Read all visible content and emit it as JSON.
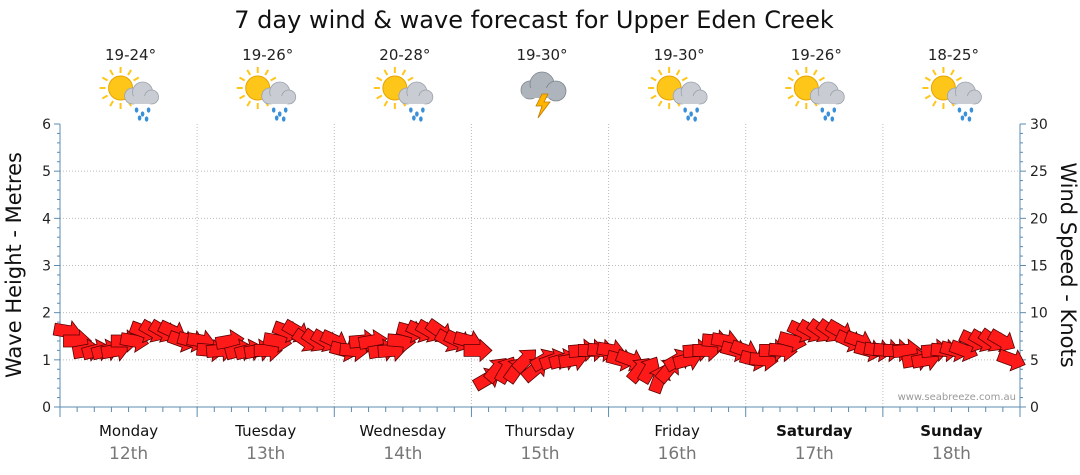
{
  "colors": {
    "arrow_fill": "#ff1a1a",
    "arrow_stroke": "#5a0000",
    "grid": "#bbbbbb",
    "axis": "#5b8bb0",
    "sun": "#ffc61a",
    "cloud": "#c9cdd3",
    "rain": "#3a8fd9",
    "bolt": "#ffb400"
  },
  "watermark": "www.seabreeze.com.au",
  "chart_data": {
    "type": "scatter",
    "title": "7 day wind & wave forecast for Upper Eden Creek",
    "ylabel_left": "Wave Height - Metres",
    "ylabel_right": "Wind Speed - Knots",
    "ylim_left": [
      0,
      6
    ],
    "ylim_right": [
      0,
      30
    ],
    "yticks_left": [
      "0",
      "1",
      "2",
      "3",
      "4",
      "5",
      "6"
    ],
    "yticks_right": [
      "0",
      "5",
      "10",
      "15",
      "20",
      "25",
      "30"
    ],
    "grid": true,
    "days": [
      {
        "day": "Monday",
        "date": "12th",
        "temp": "19-24°",
        "icon": "sun-cloud-showers-icon",
        "bold": false
      },
      {
        "day": "Tuesday",
        "date": "13th",
        "temp": "19-26°",
        "icon": "sun-cloud-showers-icon",
        "bold": false
      },
      {
        "day": "Wednesday",
        "date": "14th",
        "temp": "20-28°",
        "icon": "sun-cloud-showers-icon",
        "bold": false
      },
      {
        "day": "Thursday",
        "date": "15th",
        "temp": "19-30°",
        "icon": "storm-cloud-icon",
        "bold": false
      },
      {
        "day": "Friday",
        "date": "16th",
        "temp": "19-30°",
        "icon": "sun-cloud-showers-icon",
        "bold": false
      },
      {
        "day": "Saturday",
        "date": "17th",
        "temp": "19-26°",
        "icon": "sun-cloud-showers-icon",
        "bold": true
      },
      {
        "day": "Sunday",
        "date": "18th",
        "temp": "18-25°",
        "icon": "sun-cloud-showers-icon",
        "bold": true
      }
    ],
    "wind_series": {
      "name": "Wind Speed - Knots",
      "speed_knots": [
        8,
        7,
        6,
        6,
        6,
        6,
        7,
        7,
        8,
        8,
        8,
        8,
        7,
        7,
        7,
        6,
        6,
        7,
        6,
        6,
        6,
        6,
        7,
        8,
        8,
        7,
        7,
        7,
        7,
        6,
        6,
        7,
        7,
        6,
        6,
        7,
        8,
        8,
        8,
        8,
        7,
        7,
        7,
        6,
        3,
        4,
        4,
        4,
        5,
        4,
        5,
        5,
        5,
        5,
        6,
        6,
        6,
        6,
        5,
        5,
        4,
        4,
        3,
        4,
        5,
        5,
        6,
        6,
        7,
        7,
        6,
        6,
        5,
        5,
        6,
        6,
        7,
        8,
        8,
        8,
        8,
        8,
        7,
        7,
        6,
        6,
        6,
        6,
        6,
        5,
        5,
        6,
        6,
        6,
        6,
        7,
        7,
        7,
        7,
        5
      ],
      "direction_deg": [
        280,
        270,
        260,
        255,
        255,
        260,
        270,
        280,
        290,
        300,
        300,
        295,
        290,
        285,
        280,
        275,
        265,
        260,
        255,
        255,
        260,
        270,
        280,
        290,
        300,
        305,
        305,
        300,
        295,
        285,
        275,
        265,
        260,
        260,
        265,
        275,
        285,
        295,
        300,
        305,
        300,
        295,
        285,
        270,
        240,
        220,
        210,
        215,
        225,
        230,
        240,
        250,
        255,
        260,
        265,
        270,
        275,
        280,
        285,
        290,
        220,
        210,
        200,
        220,
        240,
        255,
        265,
        270,
        275,
        280,
        285,
        290,
        285,
        275,
        270,
        275,
        285,
        295,
        300,
        305,
        305,
        300,
        295,
        290,
        285,
        280,
        275,
        270,
        265,
        260,
        260,
        265,
        275,
        285,
        290,
        295,
        300,
        305,
        300,
        290
      ]
    }
  }
}
